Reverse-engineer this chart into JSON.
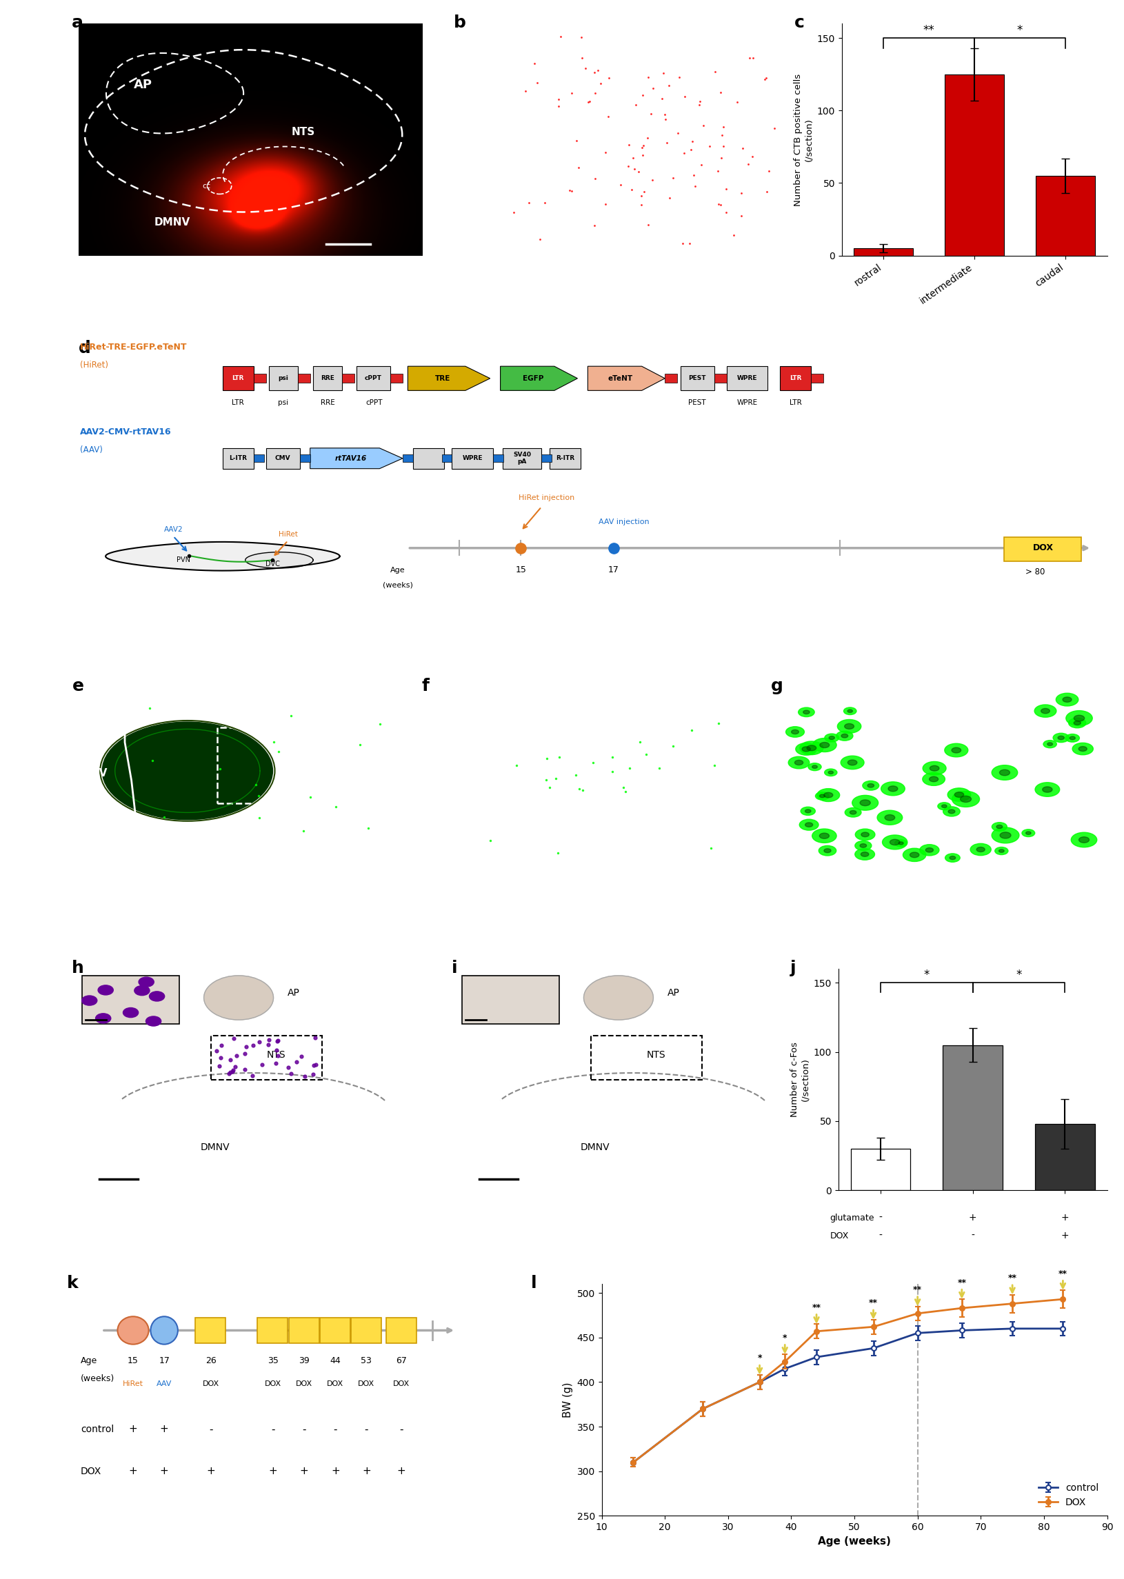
{
  "panel_c": {
    "categories": [
      "rostral",
      "intermediate",
      "caudal"
    ],
    "values": [
      5,
      125,
      55
    ],
    "errors": [
      3,
      18,
      12
    ],
    "bar_color": "#cc0000",
    "ylabel": "Number of CTB positive cells\n(/section)",
    "ylim": [
      0,
      160
    ],
    "yticks": [
      0,
      50,
      100,
      150
    ]
  },
  "panel_j": {
    "bar_colors": [
      "#ffffff",
      "#808080",
      "#333333"
    ],
    "values": [
      30,
      105,
      48
    ],
    "errors": [
      8,
      12,
      18
    ],
    "ylabel": "Number of c-Fos\n(/section)",
    "ylim": [
      0,
      160
    ],
    "yticks": [
      0,
      50,
      100,
      150
    ],
    "xlabels_glut": [
      "-",
      "+",
      "+"
    ],
    "xlabels_dox": [
      "-",
      "-",
      "+"
    ]
  },
  "panel_l": {
    "x_pts": [
      15,
      26,
      35,
      39,
      44,
      53,
      60,
      67,
      75,
      83
    ],
    "y_control": [
      310,
      370,
      400,
      415,
      428,
      438,
      455,
      458,
      460,
      460
    ],
    "y_control_err": [
      5,
      8,
      8,
      8,
      8,
      8,
      8,
      8,
      8,
      8
    ],
    "y_dox": [
      310,
      370,
      400,
      423,
      457,
      462,
      477,
      483,
      488,
      493
    ],
    "y_dox_err": [
      5,
      8,
      8,
      8,
      8,
      8,
      8,
      10,
      10,
      10
    ],
    "control_color": "#1f3d8c",
    "dox_color": "#e07820",
    "xlabel": "Age (weeks)",
    "ylabel": "BW (g)",
    "ylim": [
      250,
      510
    ],
    "yticks": [
      250,
      300,
      350,
      400,
      450,
      500
    ],
    "xlim": [
      10,
      90
    ],
    "xticks": [
      10,
      20,
      30,
      40,
      50,
      60,
      70,
      80,
      90
    ],
    "dox_start_x": 60,
    "sig_x": [
      35,
      39,
      44,
      53,
      60,
      67,
      75,
      83
    ],
    "sig_labels": [
      "*",
      "*",
      "**",
      "**",
      "**",
      "**",
      "**",
      "**"
    ],
    "legend_control": "control",
    "legend_dox": "DOX"
  },
  "colors": {
    "background": "#ffffff",
    "trkb_orange": "#e07820",
    "aav_blue": "#1a6fcc",
    "egfp_green": "#44bb44",
    "etent_peach": "#f0b090",
    "tre_gold": "#d4aa00",
    "box_gray": "#b8b8b8",
    "box_lightgray": "#d8d8d8",
    "dox_box_yellow": "#ffdd44",
    "dox_box_border": "#cc9900",
    "red_ltr": "#dd2222",
    "blue_dot": "#4488cc",
    "histology_bg": "#e8e0d8"
  }
}
